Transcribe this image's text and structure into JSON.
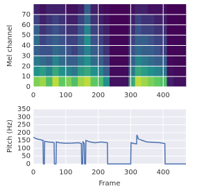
{
  "chart_data": [
    {
      "type": "heatmap",
      "ylabel": "Mel channel",
      "colormap": "viridis",
      "grid": true,
      "xlim": [
        0,
        470
      ],
      "ylim": [
        0,
        80
      ],
      "xticks": [
        0,
        100,
        200,
        300,
        400
      ],
      "yticks": [
        0,
        10,
        20,
        30,
        40,
        50,
        60,
        70
      ],
      "z": [
        [
          0.8,
          0.85,
          0.7,
          0.9,
          0.75,
          0.8,
          0.7,
          0.85,
          0.9,
          0.75,
          0.7,
          0.5,
          0.05,
          0.05,
          0.05,
          0.6,
          0.9,
          0.85,
          0.8,
          0.75,
          0.7,
          0.1,
          0.05,
          0.05
        ],
        [
          0.5,
          0.55,
          0.45,
          0.6,
          0.5,
          0.45,
          0.4,
          0.55,
          0.6,
          0.5,
          0.45,
          0.3,
          0.03,
          0.03,
          0.03,
          0.4,
          0.6,
          0.55,
          0.5,
          0.45,
          0.4,
          0.05,
          0.03,
          0.03
        ],
        [
          0.4,
          0.35,
          0.3,
          0.45,
          0.35,
          0.3,
          0.3,
          0.4,
          0.5,
          0.35,
          0.3,
          0.2,
          0.02,
          0.02,
          0.02,
          0.3,
          0.45,
          0.4,
          0.35,
          0.3,
          0.3,
          0.03,
          0.02,
          0.02
        ],
        [
          0.3,
          0.25,
          0.25,
          0.35,
          0.3,
          0.25,
          0.2,
          0.3,
          0.45,
          0.3,
          0.25,
          0.15,
          0.02,
          0.02,
          0.02,
          0.25,
          0.35,
          0.3,
          0.3,
          0.25,
          0.2,
          0.02,
          0.02,
          0.02
        ],
        [
          0.35,
          0.2,
          0.25,
          0.3,
          0.25,
          0.2,
          0.2,
          0.3,
          0.5,
          0.25,
          0.2,
          0.12,
          0.02,
          0.02,
          0.02,
          0.2,
          0.3,
          0.3,
          0.25,
          0.2,
          0.2,
          0.02,
          0.02,
          0.02
        ],
        [
          0.3,
          0.15,
          0.2,
          0.25,
          0.2,
          0.15,
          0.15,
          0.25,
          0.45,
          0.2,
          0.15,
          0.1,
          0.01,
          0.01,
          0.01,
          0.15,
          0.25,
          0.2,
          0.2,
          0.15,
          0.15,
          0.01,
          0.01,
          0.01
        ],
        [
          0.2,
          0.1,
          0.15,
          0.2,
          0.15,
          0.1,
          0.1,
          0.2,
          0.35,
          0.15,
          0.1,
          0.05,
          0.01,
          0.01,
          0.01,
          0.1,
          0.2,
          0.15,
          0.15,
          0.1,
          0.1,
          0.01,
          0.01,
          0.01
        ],
        [
          0.1,
          0.05,
          0.1,
          0.1,
          0.1,
          0.05,
          0.05,
          0.1,
          0.3,
          0.1,
          0.05,
          0.03,
          0.01,
          0.01,
          0.01,
          0.05,
          0.1,
          0.1,
          0.05,
          0.05,
          0.05,
          0.01,
          0.01,
          0.01
        ]
      ]
    },
    {
      "type": "line",
      "xlabel": "Frame",
      "ylabel": "Pitch (Hz)",
      "color": "#4c72b0",
      "grid": true,
      "xlim": [
        0,
        470
      ],
      "ylim": [
        0,
        350
      ],
      "xticks": [
        0,
        100,
        200,
        300,
        400
      ],
      "yticks": [
        0,
        50,
        100,
        150,
        200,
        250,
        300,
        350
      ],
      "x": [
        0,
        5,
        10,
        20,
        30,
        31,
        34,
        35,
        45,
        60,
        64,
        65,
        70,
        71,
        80,
        100,
        120,
        140,
        148,
        149,
        152,
        153,
        157,
        158,
        161,
        162,
        175,
        190,
        210,
        228,
        229,
        300,
        301,
        310,
        318,
        319,
        322,
        323,
        335,
        350,
        370,
        390,
        405,
        406,
        470
      ],
      "values": [
        170,
        165,
        160,
        155,
        150,
        0,
        0,
        145,
        140,
        138,
        135,
        0,
        0,
        140,
        135,
        132,
        133,
        135,
        130,
        0,
        0,
        140,
        130,
        0,
        0,
        150,
        140,
        135,
        140,
        135,
        0,
        0,
        135,
        130,
        128,
        185,
        170,
        160,
        150,
        140,
        138,
        135,
        130,
        0,
        0
      ]
    }
  ]
}
